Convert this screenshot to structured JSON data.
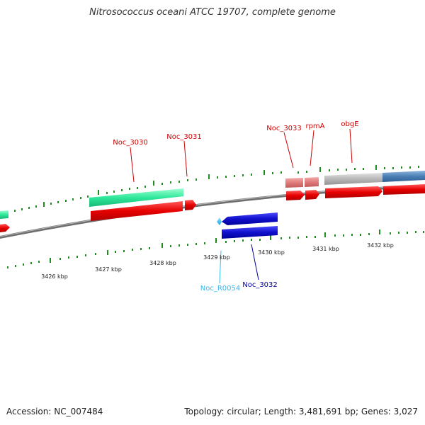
{
  "title": "Nitrosococcus oceani ATCC 19707, complete genome",
  "footer": {
    "accession": "Accession: NC_007484",
    "summary": "Topology: circular; Length: 3,481,691 bp; Genes: 3,027"
  },
  "colors": {
    "backbone": "#808080",
    "forward_cds": "#e00000",
    "forward_gene_green": "#2ee89a",
    "reverse_cds": "#1010cc",
    "trna": "#33bbee",
    "ribosomal": "#e07a7a",
    "gray_feature": "#b8b8b8",
    "blue_feature": "#4a7fb5",
    "ticks": "#1e8f1e"
  },
  "scale_labels": [
    "3426 kbp",
    "3427 kbp",
    "3428 kbp",
    "3429 kbp",
    "3430 kbp",
    "3431 kbp",
    "3432 kbp"
  ],
  "gene_labels": [
    {
      "id": "noc3030",
      "text": "Noc_3030",
      "strand": "forward"
    },
    {
      "id": "noc3031",
      "text": "Noc_3031",
      "strand": "forward"
    },
    {
      "id": "noc3033",
      "text": "Noc_3033",
      "strand": "forward"
    },
    {
      "id": "rpma",
      "text": "rpmA",
      "strand": "forward"
    },
    {
      "id": "obge",
      "text": "obgE",
      "strand": "forward"
    },
    {
      "id": "nocr0054",
      "text": "Noc_R0054",
      "strand": "reverse"
    },
    {
      "id": "noc3032",
      "text": "Noc_3032",
      "strand": "reverse"
    }
  ]
}
